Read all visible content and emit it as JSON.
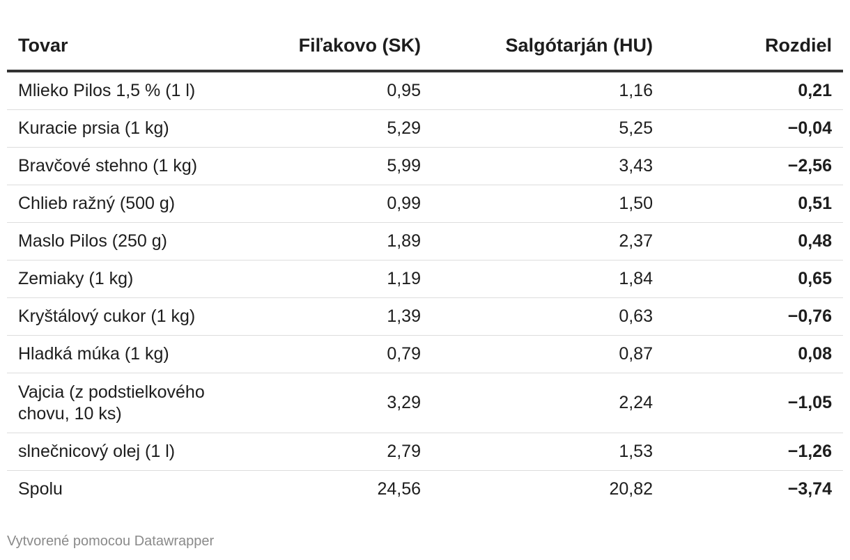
{
  "chart_data": {
    "type": "table",
    "columns": [
      "Tovar",
      "Fiľakovo (SK)",
      "Salgótarján (HU)",
      "Rozdiel"
    ],
    "rows": [
      {
        "item": "Mlieko Pilos 1,5 % (1 l)",
        "sk": "0,95",
        "hu": "1,16",
        "diff": "0,21"
      },
      {
        "item": "Kuracie prsia (1 kg)",
        "sk": "5,29",
        "hu": "5,25",
        "diff": "−0,04"
      },
      {
        "item": "Bravčové stehno (1 kg)",
        "sk": "5,99",
        "hu": "3,43",
        "diff": "−2,56"
      },
      {
        "item": "Chlieb ražný (500 g)",
        "sk": "0,99",
        "hu": "1,50",
        "diff": "0,51"
      },
      {
        "item": "Maslo Pilos (250 g)",
        "sk": "1,89",
        "hu": "2,37",
        "diff": "0,48"
      },
      {
        "item": "Zemiaky (1 kg)",
        "sk": "1,19",
        "hu": "1,84",
        "diff": "0,65"
      },
      {
        "item": "Kryštálový cukor (1 kg)",
        "sk": "1,39",
        "hu": "0,63",
        "diff": "−0,76"
      },
      {
        "item": "Hladká múka (1 kg)",
        "sk": "0,79",
        "hu": "0,87",
        "diff": "0,08"
      },
      {
        "item": "Vajcia (z podstielkového chovu, 10 ks)",
        "sk": "3,29",
        "hu": "2,24",
        "diff": "−1,05"
      },
      {
        "item": "slnečnicový olej (1 l)",
        "sk": "2,79",
        "hu": "1,53",
        "diff": "−1,26"
      },
      {
        "item": "Spolu",
        "sk": "24,56",
        "hu": "20,82",
        "diff": "−3,74"
      }
    ]
  },
  "footer": {
    "credit": "Vytvorené pomocou Datawrapper"
  }
}
